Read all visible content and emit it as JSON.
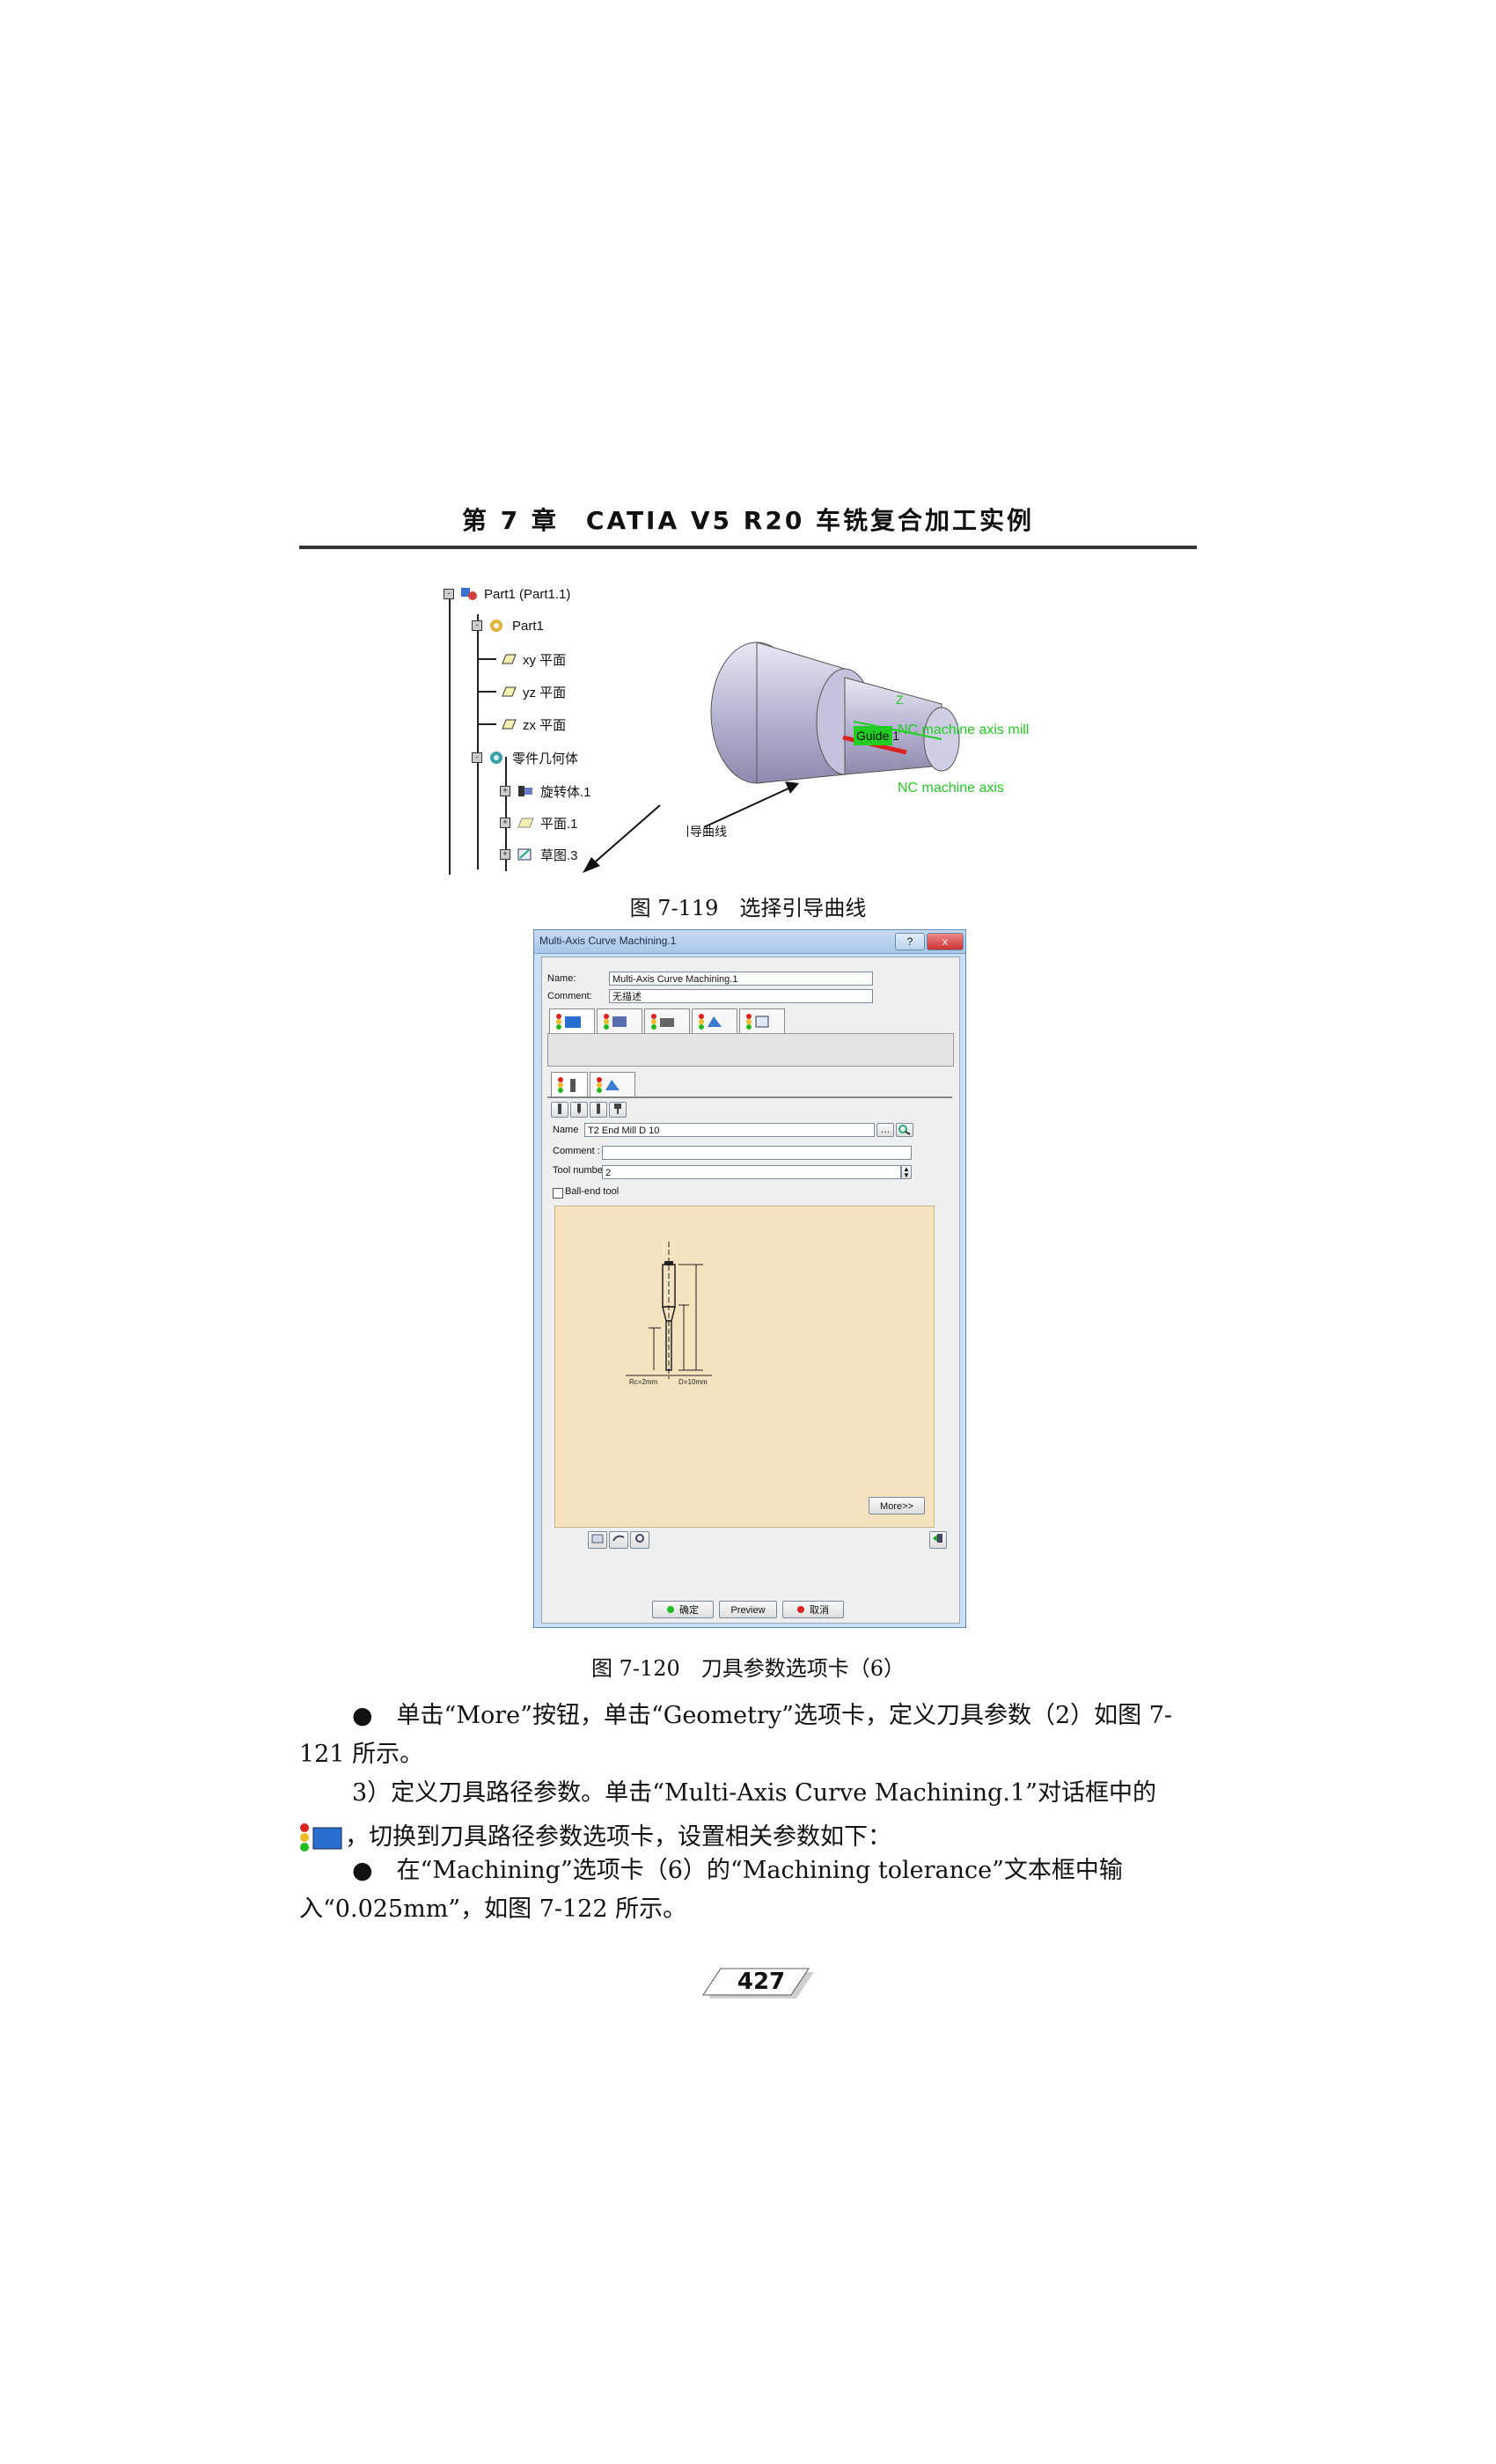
{
  "header": {
    "title": "第 7 章　CATIA V5 R20 车铣复合加工实例"
  },
  "figure1": {
    "tree": [
      {
        "label": "Part1 (Part1.1)",
        "icon": "product-icon"
      },
      {
        "label": "Part1",
        "icon": "part-icon"
      },
      {
        "label": "xy 平面",
        "icon": "plane-icon"
      },
      {
        "label": "yz 平面",
        "icon": "plane-icon"
      },
      {
        "label": "zx 平面",
        "icon": "plane-icon"
      },
      {
        "label": "零件几何体",
        "icon": "body-icon"
      },
      {
        "label": "旋转体.1",
        "icon": "shaft-icon"
      },
      {
        "label": "平面.1",
        "icon": "plane-icon"
      },
      {
        "label": "草图.3",
        "icon": "sketch-icon"
      }
    ],
    "annotations": {
      "guide_curve": "引导曲线",
      "guide_label": "Guide 1",
      "machine_axis_mill": "NC machine axis mill",
      "machine_axis": "NC machine axis",
      "axis_z": "Z"
    },
    "caption": "图 7-119　选择引导曲线"
  },
  "figure2": {
    "dialog_title": "Multi-Axis Curve Machining.1",
    "help_button": "?",
    "close_button": "x",
    "name_label": "Name:",
    "name_value": "Multi-Axis Curve Machining.1",
    "comment_label": "Comment:",
    "comment_value": "无描述",
    "tool_name_label": "Name",
    "tool_name_value": "T2 End Mill D 10",
    "tool_comment_label": "Comment :",
    "tool_comment_value": "",
    "tool_number_label": "Tool number :",
    "tool_number_value": "2",
    "ball_end_label": "Ball-end tool",
    "ball_end_checked": false,
    "more_button": "More>>",
    "ok_button": "确定",
    "preview_button": "Preview",
    "cancel_button": "取消",
    "dims": {
      "rc": "Rc=2mm",
      "d": "D=10mm"
    },
    "caption": "图 7-120　刀具参数选项卡（6）"
  },
  "body": {
    "para1": "●　单击“More”按钮，单击“Geometry”选项卡，定义刀具参数（2）如图 7-121 所示。",
    "para2": "3）定义刀具路径参数。单击“Multi-Axis Curve Machining.1”对话框中的",
    "para3": "，切换到刀具路径参数选项卡，设置相关参数如下：",
    "para4": "●　在“Machining”选项卡（6）的“Machining tolerance”文本框中输入“0.025mm”，如图 7-122 所示。"
  },
  "page_number": "427"
}
